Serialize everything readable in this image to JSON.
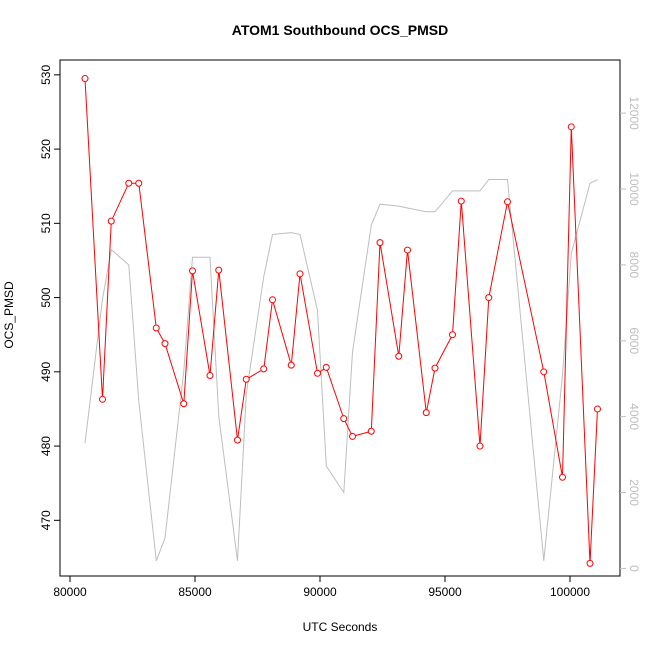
{
  "chart_data": {
    "type": "line",
    "title": "ATOM1 Southbound OCS_PMSD",
    "xlabel": "UTC Seconds",
    "ylabel": "OCS_PMSD",
    "xlim": [
      79600,
      102000
    ],
    "ylim": [
      462.5,
      532
    ],
    "y2lim": [
      -200,
      13400
    ],
    "x_ticks": [
      80000,
      85000,
      90000,
      95000,
      100000
    ],
    "y_ticks": [
      470,
      480,
      490,
      500,
      510,
      520,
      530
    ],
    "y2_ticks": [
      0,
      2000,
      4000,
      6000,
      8000,
      10000,
      12000
    ],
    "grid": false,
    "series": [
      {
        "axis": "left",
        "color": "#ff0000",
        "markers": "open-circle",
        "x": [
          80600,
          81300,
          81650,
          82350,
          82750,
          83450,
          83800,
          84550,
          84900,
          85600,
          85950,
          86700,
          87050,
          87750,
          88100,
          88850,
          89200,
          89900,
          90250,
          90950,
          91300,
          92050,
          92400,
          93150,
          93500,
          94250,
          94600,
          95300,
          95650,
          96400,
          96750,
          97500,
          98950,
          99700,
          100050,
          100800,
          101100
        ],
        "y": [
          529.5,
          486.3,
          510.3,
          515.4,
          515.4,
          495.9,
          493.8,
          485.7,
          503.6,
          489.5,
          503.7,
          480.8,
          489.0,
          490.4,
          499.7,
          490.9,
          503.2,
          489.8,
          490.6,
          483.7,
          481.3,
          482.0,
          507.4,
          492.1,
          506.4,
          484.5,
          490.5,
          495.0,
          513.0,
          480.0,
          500.0,
          512.9,
          490.0,
          475.8,
          523.0,
          464.2,
          485.0
        ]
      },
      {
        "axis": "right",
        "color": "#bebebe",
        "markers": "none",
        "x": [
          80600,
          81300,
          81650,
          82350,
          82750,
          83450,
          83800,
          84550,
          84900,
          85600,
          85950,
          86700,
          87050,
          87750,
          88100,
          88850,
          89200,
          89900,
          90250,
          90950,
          91300,
          92050,
          92400,
          93150,
          93500,
          94250,
          94600,
          95300,
          95650,
          96400,
          96750,
          97500,
          98950,
          99700,
          100050,
          100800,
          101100
        ],
        "y": [
          3300,
          7100,
          8400,
          8000,
          4400,
          200,
          800,
          5200,
          8200,
          8200,
          4000,
          200,
          4600,
          7700,
          8800,
          8850,
          8800,
          6800,
          2700,
          2000,
          5700,
          9050,
          9600,
          9550,
          9500,
          9400,
          9400,
          9950,
          9950,
          9950,
          10250,
          10250,
          200,
          5100,
          8300,
          10150,
          10250
        ]
      }
    ]
  }
}
